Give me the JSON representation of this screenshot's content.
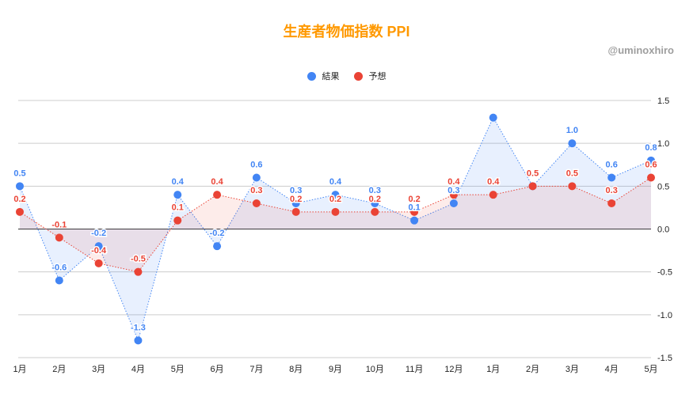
{
  "credit": "@uminoxhiro",
  "chart_data": {
    "type": "area",
    "title": "生産者物価指数  PPI",
    "categories": [
      "1月",
      "2月",
      "3月",
      "4月",
      "5月",
      "6月",
      "7月",
      "8月",
      "9月",
      "10月",
      "11月",
      "12月",
      "1月",
      "2月",
      "3月",
      "4月",
      "5月"
    ],
    "series": [
      {
        "name": "結果",
        "color": "#4285f4",
        "values": [
          0.5,
          -0.6,
          -0.2,
          -1.3,
          0.4,
          -0.2,
          0.6,
          0.3,
          0.4,
          0.3,
          0.1,
          0.3,
          1.3,
          0.5,
          1.0,
          0.6,
          0.8
        ],
        "labels": [
          "0.5",
          "-0.6",
          "-0.2",
          "-1.3",
          "0.4",
          "-0.2",
          "0.6",
          "0.3",
          "0.4",
          "0.3",
          "0.1",
          "0.3",
          null,
          null,
          "1.0",
          "0.6",
          "0.8"
        ]
      },
      {
        "name": "予想",
        "color": "#ea4335",
        "values": [
          0.2,
          -0.1,
          -0.4,
          -0.5,
          0.1,
          0.4,
          0.3,
          0.2,
          0.2,
          0.2,
          0.2,
          0.4,
          0.4,
          0.5,
          0.5,
          0.3,
          0.6
        ],
        "labels": [
          "0.2",
          "-0.1",
          "-0.4",
          "-0.5",
          "0.1",
          "0.4",
          "0.3",
          "0.2",
          "0.2",
          "0.2",
          "0.2",
          "0.4",
          "0.4",
          "0.5",
          "0.5",
          "0.3",
          "0.6"
        ]
      }
    ],
    "ylim": [
      -1.5,
      1.5
    ],
    "yticks": [
      "1.5",
      "1.0",
      "0.5",
      "0.0",
      "-0.5",
      "-1.0",
      "-1.5"
    ],
    "y_axis_position": "right",
    "grid": true,
    "legend": "top"
  }
}
